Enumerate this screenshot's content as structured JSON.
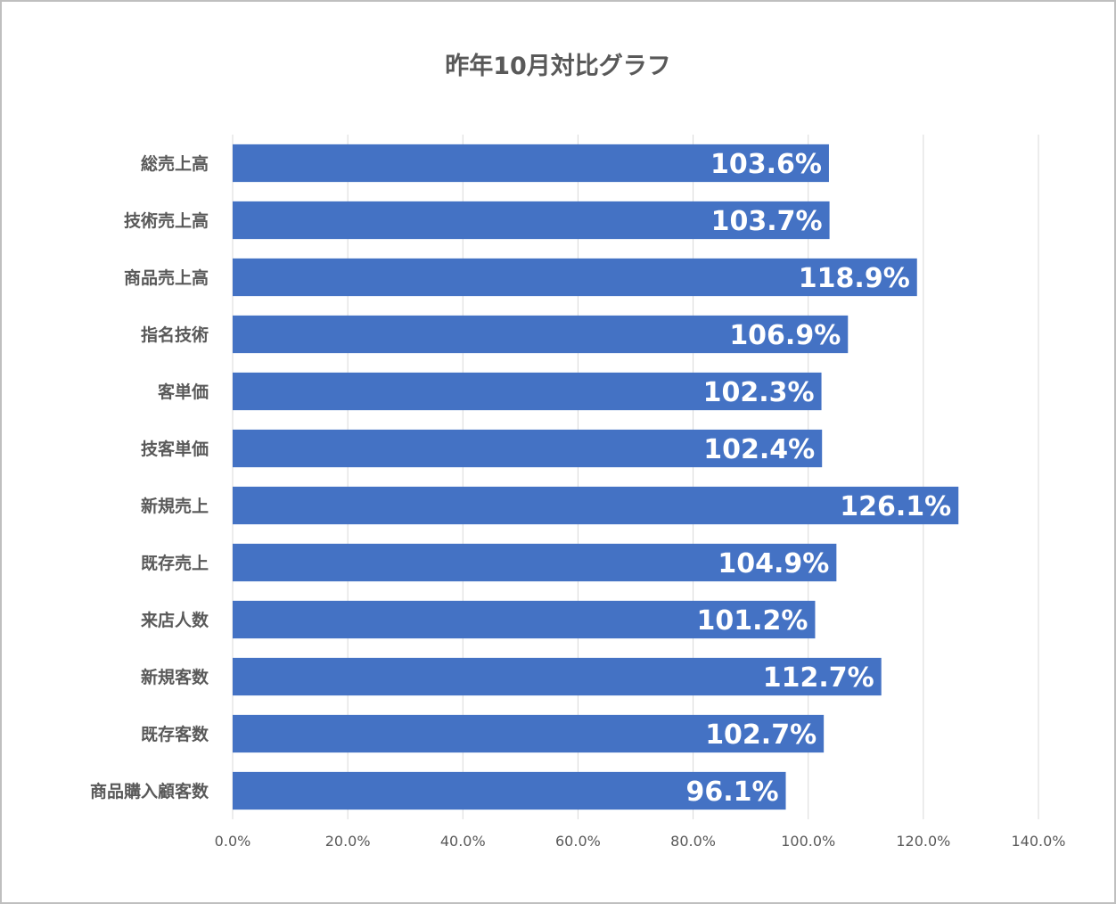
{
  "chart_data": {
    "type": "bar",
    "orientation": "horizontal",
    "title": "昨年10月対比グラフ",
    "categories": [
      "総売上高",
      "技術売上高",
      "商品売上高",
      "指名技術",
      "客単価",
      "技客単価",
      "新規売上",
      "既存売上",
      "来店人数",
      "新規客数",
      "既存客数",
      "商品購入顧客数"
    ],
    "values": [
      103.6,
      103.7,
      118.9,
      106.9,
      102.3,
      102.4,
      126.1,
      104.9,
      101.2,
      112.7,
      102.7,
      96.1
    ],
    "value_labels": [
      "103.6%",
      "103.7%",
      "118.9%",
      "106.9%",
      "102.3%",
      "102.4%",
      "126.1%",
      "104.9%",
      "101.2%",
      "112.7%",
      "102.7%",
      "96.1%"
    ],
    "xlim": [
      0,
      140
    ],
    "x_ticks": [
      0,
      20,
      40,
      60,
      80,
      100,
      120,
      140
    ],
    "x_tick_labels": [
      "0.0%",
      "20.0%",
      "40.0%",
      "60.0%",
      "80.0%",
      "100.0%",
      "120.0%",
      "140.0%"
    ],
    "xlabel": "",
    "ylabel": "",
    "grid": "vertical",
    "legend": "none",
    "bar_color": "#4472c4",
    "grid_color": "#d9d9d9",
    "text_color": "#595959"
  }
}
